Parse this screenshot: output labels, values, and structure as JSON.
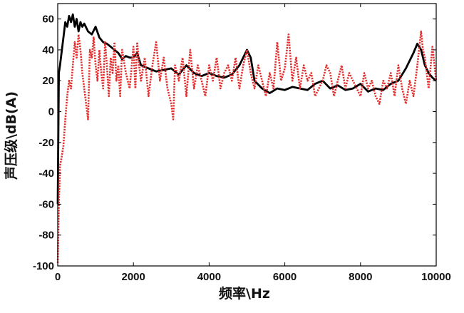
{
  "chart_data": {
    "type": "line",
    "title": "",
    "xlabel": "频率\\Hz",
    "ylabel": "声压级\\dB(A)",
    "xlim": [
      0,
      10000
    ],
    "ylim": [
      -100,
      70
    ],
    "x_ticks": [
      0,
      2000,
      4000,
      6000,
      8000,
      10000
    ],
    "x_tick_labels": [
      "0",
      "2000",
      "4000",
      "6000",
      "8000",
      "10000"
    ],
    "y_ticks": [
      -100,
      -80,
      -60,
      -40,
      -20,
      0,
      20,
      40,
      60
    ],
    "y_tick_labels": [
      "-100",
      "-80",
      "-60",
      "-40",
      "-20",
      "0",
      "20",
      "40",
      "60"
    ],
    "grid": false,
    "series": [
      {
        "name": "black solid",
        "color": "#000000",
        "style": "solid",
        "x": [
          0,
          30,
          60,
          100,
          150,
          200,
          250,
          300,
          350,
          400,
          450,
          500,
          550,
          600,
          650,
          700,
          800,
          900,
          1000,
          1100,
          1200,
          1300,
          1400,
          1500,
          1600,
          1700,
          1800,
          1900,
          2000,
          2100,
          2200,
          2400,
          2600,
          2800,
          3000,
          3200,
          3400,
          3600,
          3800,
          4000,
          4200,
          4400,
          4600,
          4800,
          5000,
          5100,
          5200,
          5400,
          5600,
          5800,
          6000,
          6200,
          6400,
          6600,
          6800,
          7000,
          7200,
          7400,
          7600,
          7800,
          8000,
          8200,
          8400,
          8600,
          8800,
          9000,
          9200,
          9400,
          9500,
          9600,
          9700,
          9800,
          9900,
          10000
        ],
        "y": [
          -60,
          25,
          30,
          38,
          48,
          58,
          55,
          62,
          58,
          63,
          55,
          60,
          52,
          58,
          55,
          57,
          52,
          50,
          55,
          48,
          45,
          44,
          42,
          40,
          38,
          34,
          36,
          35,
          35,
          38,
          30,
          28,
          26,
          27,
          28,
          24,
          30,
          25,
          23,
          25,
          23,
          22,
          24,
          30,
          40,
          35,
          20,
          15,
          12,
          15,
          14,
          16,
          15,
          14,
          18,
          20,
          15,
          17,
          14,
          15,
          18,
          13,
          15,
          14,
          18,
          20,
          28,
          38,
          44,
          40,
          30,
          25,
          22,
          20
        ]
      },
      {
        "name": "red dotted",
        "color": "#e23030",
        "style": "dotted",
        "x": [
          0,
          30,
          60,
          100,
          150,
          200,
          250,
          300,
          350,
          400,
          450,
          500,
          550,
          600,
          650,
          700,
          750,
          800,
          850,
          900,
          950,
          1000,
          1050,
          1100,
          1150,
          1200,
          1250,
          1300,
          1350,
          1400,
          1450,
          1500,
          1550,
          1600,
          1650,
          1700,
          1800,
          1900,
          2000,
          2050,
          2100,
          2150,
          2200,
          2300,
          2400,
          2500,
          2600,
          2700,
          2800,
          2900,
          3000,
          3050,
          3100,
          3200,
          3300,
          3400,
          3500,
          3600,
          3700,
          3800,
          3900,
          4000,
          4100,
          4200,
          4300,
          4400,
          4500,
          4600,
          4700,
          4800,
          4900,
          5000,
          5100,
          5200,
          5300,
          5400,
          5500,
          5600,
          5700,
          5800,
          5900,
          6000,
          6100,
          6200,
          6300,
          6400,
          6500,
          6600,
          6700,
          6800,
          6900,
          7000,
          7100,
          7200,
          7300,
          7400,
          7500,
          7600,
          7700,
          7800,
          7900,
          8000,
          8100,
          8200,
          8300,
          8400,
          8500,
          8600,
          8700,
          8800,
          8900,
          9000,
          9100,
          9200,
          9300,
          9400,
          9500,
          9600,
          9650,
          9700,
          9800,
          9900,
          10000
        ],
        "y": [
          -98,
          -60,
          -35,
          -30,
          -22,
          -5,
          10,
          20,
          15,
          30,
          45,
          35,
          50,
          40,
          25,
          15,
          5,
          -5,
          40,
          35,
          48,
          30,
          20,
          40,
          25,
          15,
          45,
          30,
          10,
          35,
          25,
          45,
          20,
          30,
          10,
          40,
          25,
          15,
          42,
          15,
          45,
          30,
          20,
          35,
          10,
          30,
          45,
          20,
          35,
          15,
          5,
          -5,
          30,
          20,
          35,
          10,
          40,
          15,
          30,
          20,
          10,
          30,
          20,
          35,
          15,
          25,
          30,
          20,
          35,
          15,
          30,
          40,
          25,
          15,
          30,
          20,
          10,
          25,
          15,
          45,
          20,
          28,
          50,
          20,
          35,
          15,
          30,
          20,
          25,
          10,
          15,
          20,
          30,
          25,
          10,
          20,
          30,
          15,
          25,
          20,
          15,
          10,
          25,
          15,
          20,
          10,
          5,
          20,
          15,
          25,
          10,
          30,
          15,
          5,
          20,
          10,
          30,
          52,
          40,
          35,
          15,
          42,
          20
        ]
      }
    ]
  }
}
